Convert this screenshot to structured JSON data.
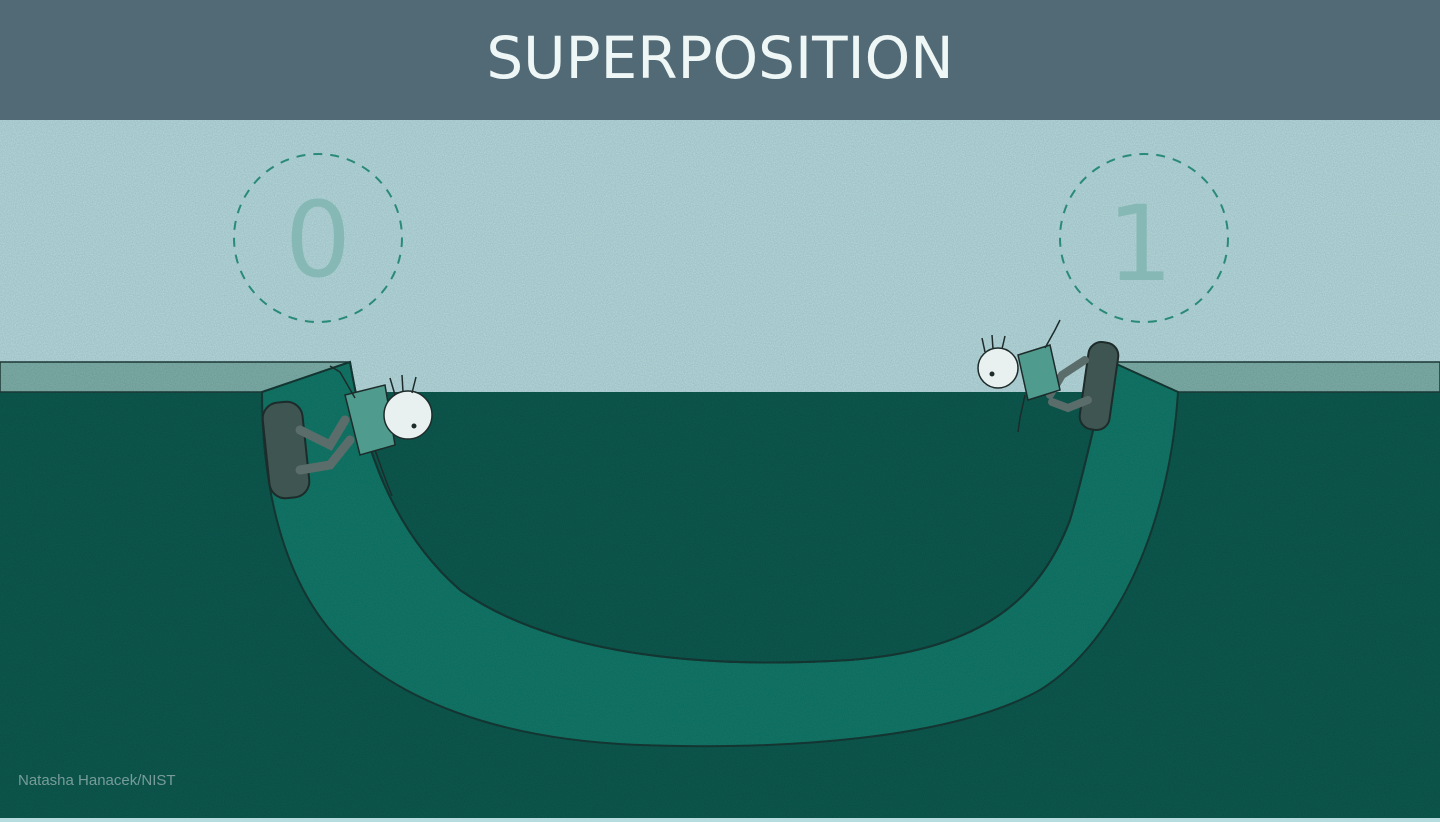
{
  "title": "SUPERPOSITION",
  "states": {
    "left": "0",
    "right": "1"
  },
  "credit": "Natasha Hanacek/NIST",
  "colors": {
    "header": "#526a75",
    "sky": "#b7dce0",
    "ground": "#0d5a50",
    "ramp": "#12796a",
    "ledge": "#7fb1ab",
    "dashed_circle": "#2a8a78",
    "state_digit": "#86b8b5"
  },
  "icons": {
    "left_figure": "skater-falling-icon",
    "right_figure": "skater-falling-icon"
  }
}
